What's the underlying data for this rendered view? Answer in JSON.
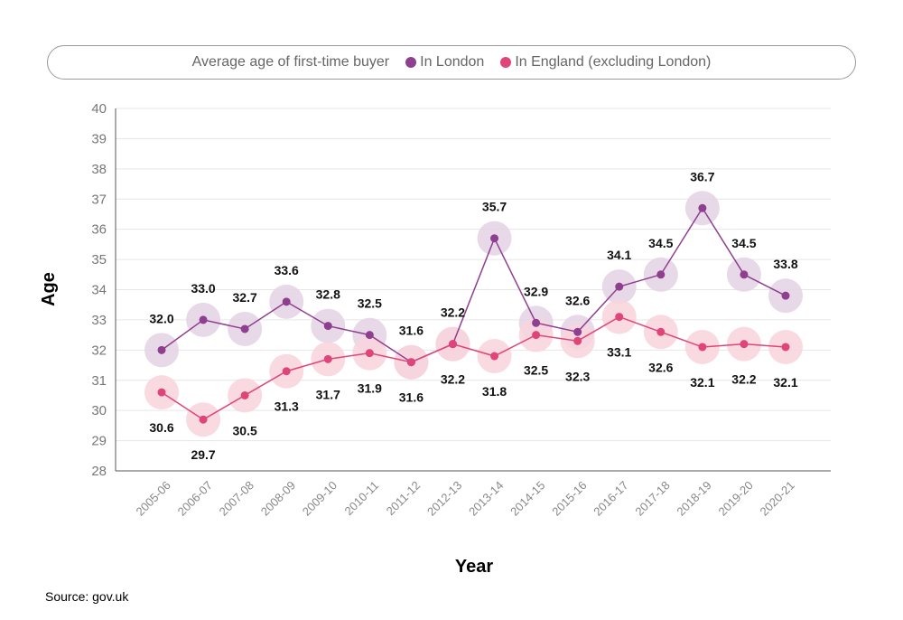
{
  "chart_data": {
    "type": "line",
    "legend_title": "Average age of first-time buyer",
    "legend_placement": "top",
    "xlabel": "Year",
    "ylabel": "Age",
    "ylim": [
      28,
      40
    ],
    "yticks": [
      28,
      29,
      30,
      31,
      32,
      33,
      34,
      35,
      36,
      37,
      38,
      39,
      40
    ],
    "grid": true,
    "categories": [
      "2005-06",
      "2006-07",
      "2007-08",
      "2008-09",
      "2009-10",
      "2010-11",
      "2011-12",
      "2012-13",
      "2013-14",
      "2014-15",
      "2015-16",
      "2016-17",
      "2017-18",
      "2018-19",
      "2019-20",
      "2020-21"
    ],
    "series": [
      {
        "name": "In London",
        "color": "#8e3f8f",
        "halo": "#e4d2e4",
        "values": [
          32.0,
          33.0,
          32.7,
          33.6,
          32.8,
          32.5,
          31.6,
          32.2,
          35.7,
          32.9,
          32.6,
          34.1,
          34.5,
          36.7,
          34.5,
          33.8
        ]
      },
      {
        "name": "In England (excluding London)",
        "color": "#e0457a",
        "halo": "#f8d3dc",
        "values": [
          30.6,
          29.7,
          30.5,
          31.3,
          31.7,
          31.9,
          31.6,
          32.2,
          31.8,
          32.5,
          32.3,
          33.1,
          32.6,
          32.1,
          32.2,
          32.1
        ]
      }
    ]
  },
  "source": "Source: gov.uk"
}
